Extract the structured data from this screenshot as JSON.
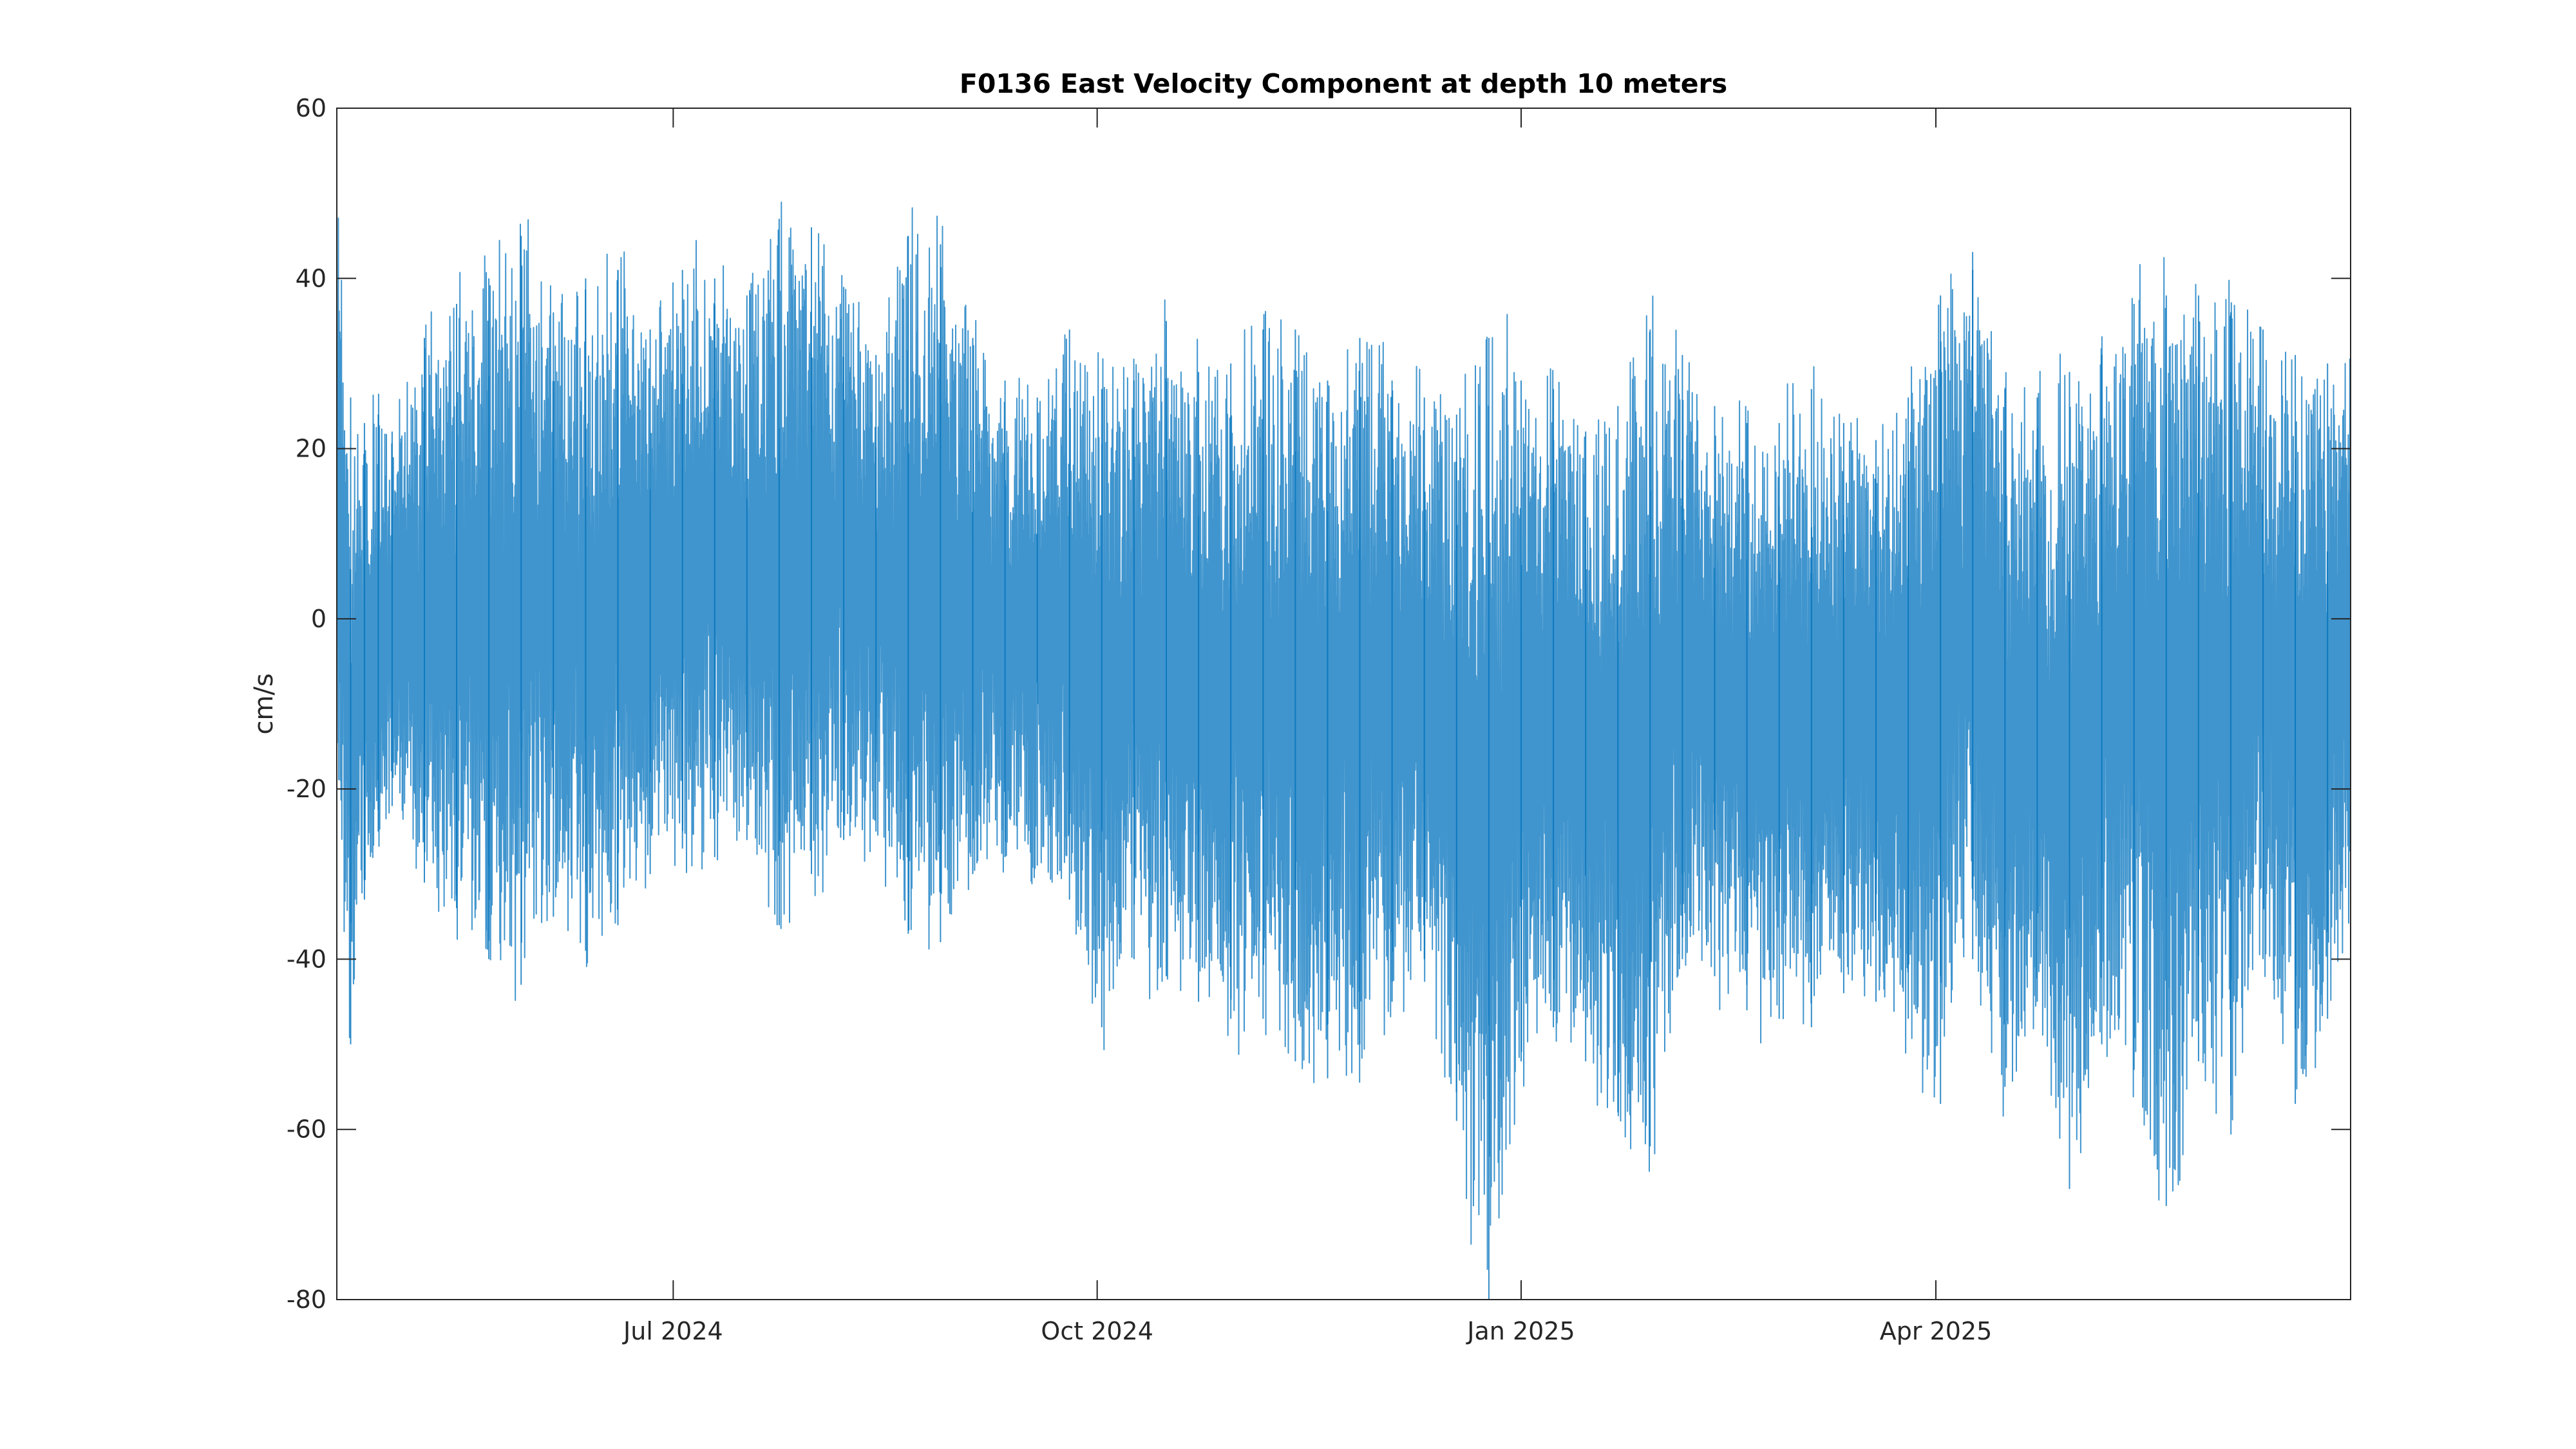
{
  "chart_data": {
    "type": "line",
    "title": "F0136 East Velocity Component at depth 10 meters",
    "xlabel": "",
    "ylabel": "cm/s",
    "ylim": [
      -80,
      60
    ],
    "xlim": [
      "2024-04-19",
      "2025-06-30"
    ],
    "yticks": [
      -80,
      -60,
      -40,
      -20,
      0,
      20,
      40,
      60
    ],
    "xticks": [
      {
        "date": "2024-07-01",
        "label": "Jul 2024"
      },
      {
        "date": "2024-10-01",
        "label": "Oct 2024"
      },
      {
        "date": "2025-01-01",
        "label": "Jan 2025"
      },
      {
        "date": "2025-04-01",
        "label": "Apr 2025"
      }
    ],
    "grid": false,
    "legend": "none",
    "series": [
      {
        "name": "",
        "color": "#0072BD",
        "note_values": "dense hourly tidal signal; values listed are sampled extrema/envelope points read from the figure",
        "x": [
          "2024-04-19",
          "2024-04-22",
          "2024-04-25",
          "2024-04-28",
          "2024-05-01",
          "2024-05-08",
          "2024-05-15",
          "2024-05-22",
          "2024-05-29",
          "2024-06-05",
          "2024-06-12",
          "2024-06-19",
          "2024-06-26",
          "2024-07-03",
          "2024-07-10",
          "2024-07-17",
          "2024-07-24",
          "2024-07-31",
          "2024-08-07",
          "2024-08-14",
          "2024-08-21",
          "2024-08-28",
          "2024-09-04",
          "2024-09-11",
          "2024-09-18",
          "2024-09-25",
          "2024-10-02",
          "2024-10-09",
          "2024-10-16",
          "2024-10-23",
          "2024-10-30",
          "2024-11-06",
          "2024-11-13",
          "2024-11-20",
          "2024-11-27",
          "2024-12-04",
          "2024-12-11",
          "2024-12-18",
          "2024-12-25",
          "2025-01-01",
          "2025-01-08",
          "2025-01-15",
          "2025-01-22",
          "2025-01-29",
          "2025-02-05",
          "2025-02-12",
          "2025-02-19",
          "2025-02-26",
          "2025-03-05",
          "2025-03-12",
          "2025-03-19",
          "2025-03-26",
          "2025-04-02",
          "2025-04-09",
          "2025-04-16",
          "2025-04-23",
          "2025-04-30",
          "2025-05-07",
          "2025-05-14",
          "2025-05-21",
          "2025-05-28",
          "2025-06-04",
          "2025-06-11",
          "2025-06-18",
          "2025-06-25",
          "2025-06-30"
        ],
        "upper": [
          48,
          26,
          23,
          24,
          22,
          33,
          37,
          40,
          45,
          36,
          40,
          41,
          34,
          41,
          40,
          38,
          47,
          46,
          39,
          31,
          45,
          44,
          33,
          28,
          26,
          34,
          27,
          28,
          35,
          29,
          30,
          34,
          34,
          28,
          33,
          28,
          26,
          24,
          33,
          28,
          27,
          22,
          25,
          34,
          31,
          25,
          23,
          23,
          27,
          23,
          21,
          26,
          38,
          41,
          27,
          26,
          29,
          31,
          37,
          38,
          38,
          36,
          34,
          31,
          30,
          29
        ],
        "lower": [
          -20,
          -50,
          -33,
          -25,
          -22,
          -31,
          -34,
          -40,
          -43,
          -35,
          -39,
          -36,
          -30,
          -27,
          -28,
          -26,
          -36,
          -30,
          -26,
          -25,
          -37,
          -38,
          -30,
          -28,
          -29,
          -33,
          -48,
          -40,
          -42,
          -45,
          -47,
          -47,
          -52,
          -54,
          -50,
          -45,
          -40,
          -59,
          -80,
          -52,
          -48,
          -52,
          -58,
          -62,
          -40,
          -42,
          -46,
          -47,
          -48,
          -44,
          -45,
          -47,
          -57,
          -40,
          -55,
          -45,
          -67,
          -50,
          -53,
          -69,
          -52,
          -56,
          -40,
          -57,
          -47,
          -35
        ]
      }
    ]
  }
}
